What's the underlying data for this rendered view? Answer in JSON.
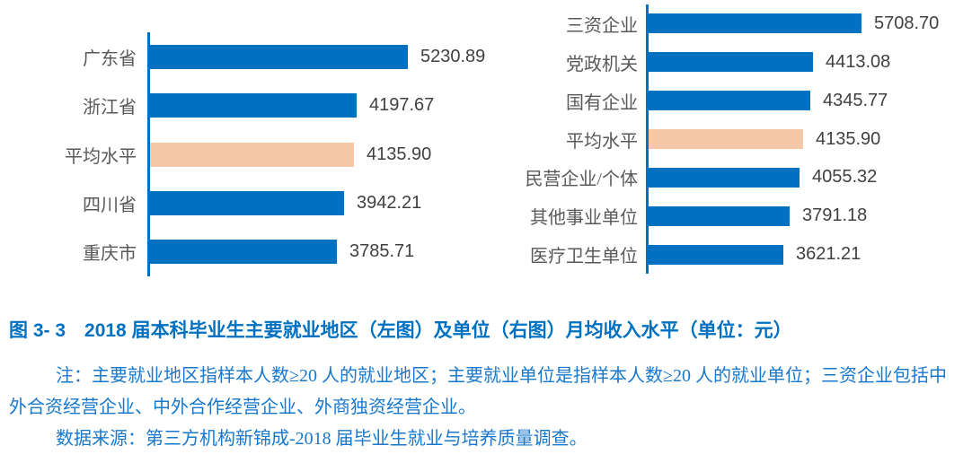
{
  "figure": {
    "caption": "图 3- 3　2018 届本科毕业生主要就业地区（左图）及单位（右图）月均收入水平（单位：元）",
    "note": "注：主要就业地区指样本人数≥20 人的就业地区；主要就业单位是指样本人数≥20 人的就业单位；三资企业包括中外合资经营企业、中外合作经营企业、外商独资经营企业。",
    "source": "数据来源：第三方机构新锦成-2018 届毕业生就业与培养质量调查。"
  },
  "colors": {
    "bar_blue": "#0070C0",
    "bar_highlight": "#F5C9A8",
    "axis_blue": "#0070C0",
    "category_text": "#595959",
    "value_text": "#404040",
    "caption_blue": "#0070C0",
    "note_blue": "#1878CD"
  },
  "chart_data": [
    {
      "type": "bar",
      "orientation": "horizontal",
      "title": "",
      "categories": [
        "广东省",
        "浙江省",
        "平均水平",
        "四川省",
        "重庆市"
      ],
      "values": [
        5230.89,
        4197.67,
        4135.9,
        3942.21,
        3785.71
      ],
      "data_labels": [
        "5230.89",
        "4197.67",
        "4135.90",
        "3942.21",
        "3785.71"
      ],
      "highlight_category": "平均水平",
      "xlim": [
        0,
        5231
      ],
      "legend": "none",
      "grid": false,
      "axis_ticks": false
    },
    {
      "type": "bar",
      "orientation": "horizontal",
      "title": "",
      "categories": [
        "三资企业",
        "党政机关",
        "国有企业",
        "平均水平",
        "民营企业/个体",
        "其他事业单位",
        "医疗卫生单位"
      ],
      "values": [
        5708.7,
        4413.08,
        4345.77,
        4135.9,
        4055.32,
        3791.18,
        3621.21
      ],
      "data_labels": [
        "5708.70",
        "4413.08",
        "4345.77",
        "4135.90",
        "4055.32",
        "3791.18",
        "3621.21"
      ],
      "highlight_category": "平均水平",
      "xlim": [
        0,
        5709
      ],
      "legend": "none",
      "grid": false,
      "axis_ticks": false
    }
  ]
}
